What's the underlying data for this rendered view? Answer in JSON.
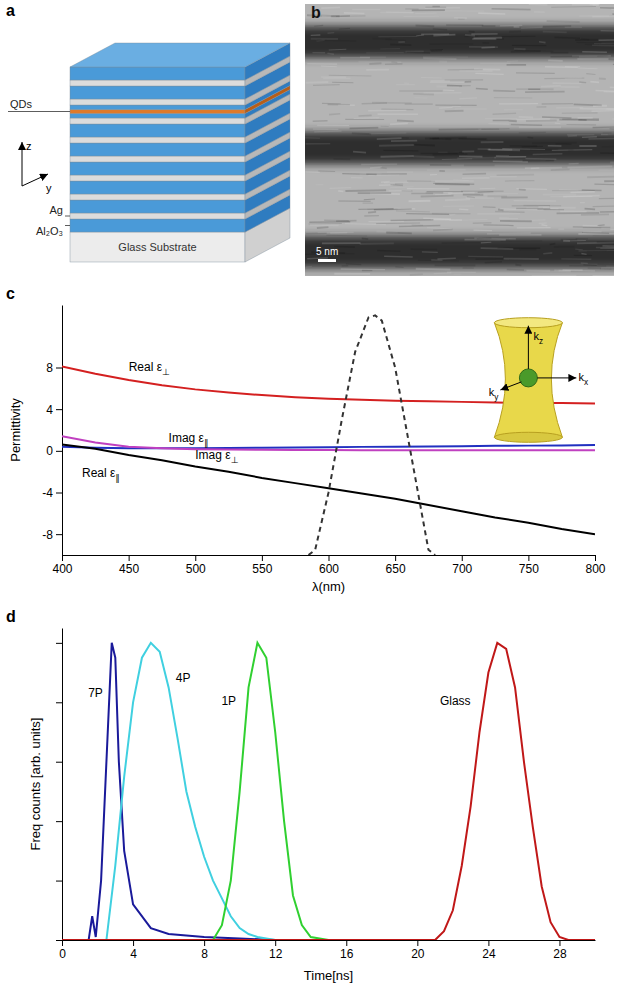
{
  "panel_a": {
    "letter": "a",
    "labels": {
      "qds": "QDs",
      "ag": "Ag",
      "al2o3": "Al₂O₃",
      "substrate": "Glass Substrate"
    },
    "axes": [
      "z",
      "y"
    ]
  },
  "panel_b": {
    "letter": "b",
    "scale_bar": "5 nm"
  },
  "chart_data": [
    {
      "letter": "c",
      "type": "line",
      "x_label": "λ(nm)",
      "y_label": "Permittivity",
      "x": [
        400,
        425,
        450,
        475,
        500,
        525,
        550,
        575,
        600,
        625,
        650,
        675,
        700,
        725,
        750,
        775,
        800
      ],
      "xlim": [
        400,
        800
      ],
      "xticks": [
        400,
        450,
        500,
        550,
        600,
        650,
        700,
        750,
        800
      ],
      "ylim": [
        -10,
        14
      ],
      "yticks": [
        -8,
        -4,
        0,
        4,
        8
      ],
      "series": [
        {
          "name": "Real ε⊥",
          "color": "#d42020",
          "values": [
            8.1,
            7.4,
            6.8,
            6.3,
            5.9,
            5.6,
            5.35,
            5.15,
            5.0,
            4.9,
            4.8,
            4.75,
            4.7,
            4.65,
            4.6,
            4.6,
            4.55
          ]
        },
        {
          "name": "Imag ε∥",
          "color": "#2030c0",
          "values": [
            0.4,
            0.3,
            0.25,
            0.25,
            0.25,
            0.28,
            0.3,
            0.33,
            0.35,
            0.38,
            0.4,
            0.42,
            0.45,
            0.48,
            0.5,
            0.52,
            0.55
          ]
        },
        {
          "name": "Imag ε⊥",
          "color": "#c040c0",
          "values": [
            1.4,
            0.8,
            0.4,
            0.25,
            0.15,
            0.12,
            0.1,
            0.08,
            0.07,
            0.06,
            0.06,
            0.05,
            0.05,
            0.05,
            0.05,
            0.05,
            0.05
          ]
        },
        {
          "name": "Real ε∥",
          "color": "#000000",
          "values": [
            0.6,
            0.2,
            -0.4,
            -0.9,
            -1.5,
            -2.0,
            -2.6,
            -3.1,
            -3.6,
            -4.1,
            -4.6,
            -5.2,
            -5.8,
            -6.4,
            -6.9,
            -7.5,
            -8.0
          ]
        },
        {
          "color": "#333333",
          "line_style": "dashed",
          "x": [
            585,
            590,
            600,
            610,
            620,
            630,
            635,
            640,
            650,
            660,
            670,
            675,
            680
          ],
          "values": [
            -10,
            -9.5,
            -4,
            3,
            9.5,
            12.8,
            13,
            12.5,
            8,
            1,
            -6,
            -9.5,
            -10
          ]
        }
      ],
      "annotations": [
        "kz",
        "kx",
        "ky"
      ]
    },
    {
      "letter": "d",
      "type": "line",
      "x_label": "Time[ns]",
      "y_label": "Freq counts [arb. units]",
      "xlim": [
        0,
        30
      ],
      "xticks": [
        0,
        4,
        8,
        12,
        16,
        20,
        24,
        28
      ],
      "ylim": [
        0,
        1.05
      ],
      "yticks": [
        0,
        0.2,
        0.4,
        0.6,
        0.8,
        1.0
      ],
      "tick_labels": "x",
      "series": [
        {
          "name": "7P",
          "color": "#1a1a9a",
          "x": [
            1.5,
            1.7,
            1.9,
            2.2,
            2.5,
            2.8,
            3.0,
            3.2,
            3.5,
            4,
            5,
            6,
            8,
            10,
            12
          ],
          "values": [
            0,
            0.08,
            0.01,
            0.2,
            0.6,
            1.0,
            0.95,
            0.6,
            0.3,
            0.12,
            0.04,
            0.02,
            0.01,
            0.005,
            0
          ]
        },
        {
          "name": "4P",
          "color": "#40d0e0",
          "x": [
            2.5,
            3,
            3.5,
            4,
            4.5,
            5,
            5.5,
            6,
            6.5,
            7,
            7.5,
            8,
            8.5,
            9,
            9.5,
            10,
            10.5,
            11,
            12
          ],
          "values": [
            0,
            0.25,
            0.55,
            0.8,
            0.95,
            1.0,
            0.97,
            0.85,
            0.68,
            0.5,
            0.38,
            0.28,
            0.2,
            0.14,
            0.08,
            0.04,
            0.02,
            0.01,
            0
          ]
        },
        {
          "name": "1P",
          "color": "#30d030",
          "x": [
            8.5,
            9,
            9.5,
            10,
            10.5,
            11,
            11.5,
            12,
            12.5,
            13,
            13.5,
            14,
            15
          ],
          "values": [
            0,
            0.05,
            0.2,
            0.5,
            0.85,
            1.0,
            0.95,
            0.7,
            0.4,
            0.15,
            0.05,
            0.01,
            0
          ]
        },
        {
          "name": "Glass",
          "color": "#c01818",
          "x": [
            0,
            21,
            21.5,
            22,
            22.5,
            23,
            23.5,
            24,
            24.5,
            25,
            25.5,
            26,
            26.5,
            27,
            27.5,
            28,
            28.5,
            30
          ],
          "values": [
            0,
            0,
            0.03,
            0.1,
            0.25,
            0.45,
            0.7,
            0.9,
            1.0,
            0.98,
            0.85,
            0.6,
            0.38,
            0.18,
            0.06,
            0.01,
            0,
            0
          ]
        }
      ]
    }
  ]
}
